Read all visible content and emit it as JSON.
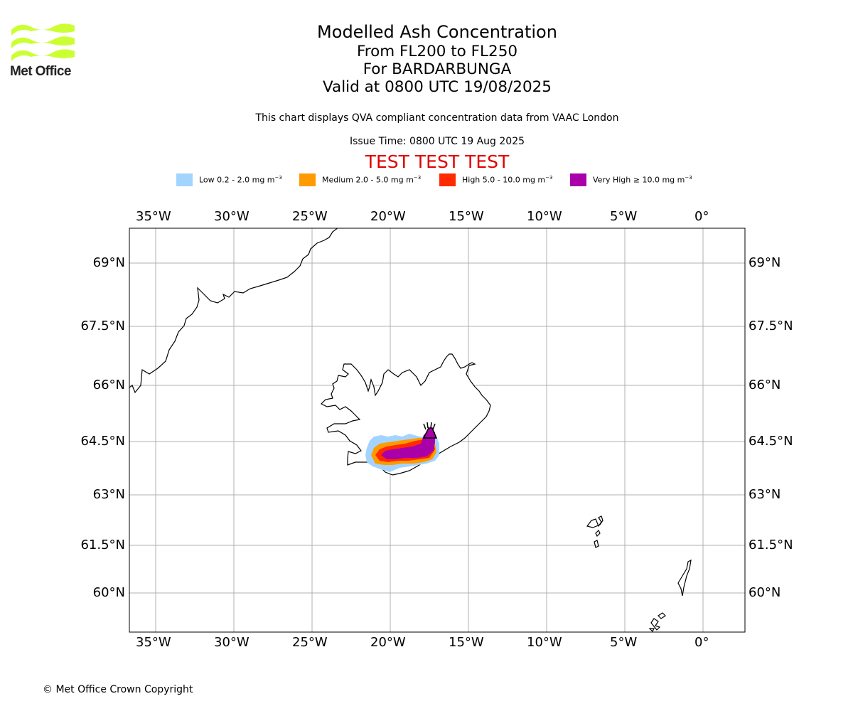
{
  "logo": {
    "text": "Met Office",
    "color": "#ccff33"
  },
  "title": {
    "line1": "Modelled Ash Concentration",
    "line2": "From FL200 to FL250",
    "line3": "For BARDARBUNGA",
    "line4": "Valid at 0800 UTC 19/08/2025"
  },
  "subtitle": "This chart displays QVA compliant concentration data from VAAC London",
  "issue_time": "Issue Time: 0800 UTC 19 Aug 2025",
  "test_banner": "TEST TEST TEST",
  "legend": [
    {
      "name": "Low 0.2 - 2.0 mg m",
      "color": "#a3d4ff"
    },
    {
      "name": "Medium 2.0 - 5.0 mg m",
      "color": "#ff9b00"
    },
    {
      "name": "High 5.0 - 10.0 mg m",
      "color": "#ff2a00"
    },
    {
      "name": "Very High ≥ 10.0 mg m",
      "color": "#aa00aa"
    }
  ],
  "legend_unit_exp": "−3",
  "map": {
    "lon_range": [
      -36.7,
      2.7
    ],
    "lat_range": [
      58.9,
      70.0
    ],
    "lon_ticks": [
      "35°W",
      "30°W",
      "25°W",
      "20°W",
      "15°W",
      "10°W",
      "5°W",
      "0°"
    ],
    "lat_ticks": [
      "69°N",
      "67.5°N",
      "66°N",
      "64.5°N",
      "63°N",
      "61.5°N",
      "60°N"
    ],
    "volcano": {
      "name": "BARDARBUNGA",
      "lon": -17.5,
      "lat": 64.63
    },
    "grid": true
  },
  "footer": "© Met Office Crown Copyright"
}
